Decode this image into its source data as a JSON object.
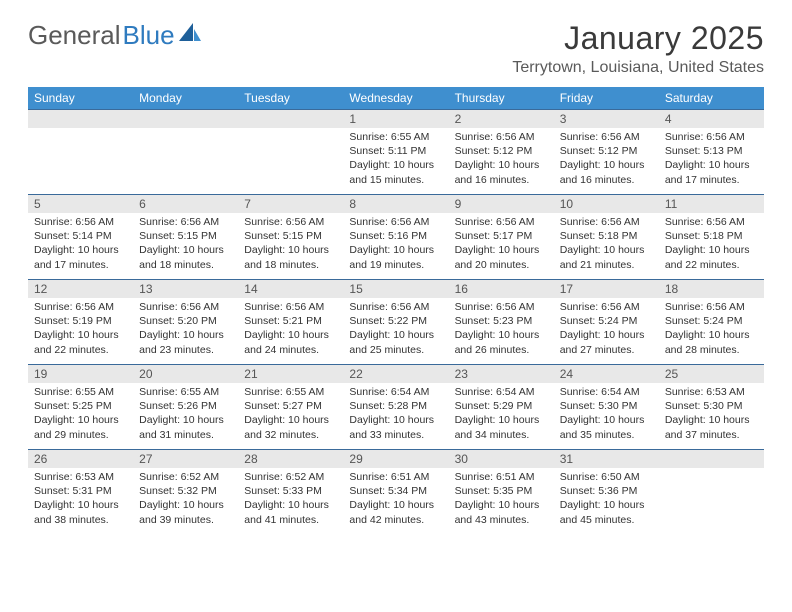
{
  "logo": {
    "text1": "General",
    "text2": "Blue"
  },
  "title": "January 2025",
  "location": "Terrytown, Louisiana, United States",
  "colors": {
    "header_bg": "#3f8fcf",
    "header_text": "#ffffff",
    "daynum_bg": "#e8e8e8",
    "week_border": "#3a6a9a",
    "logo_gray": "#5a5a5a",
    "logo_blue": "#2f7bbf"
  },
  "weekdays": [
    "Sunday",
    "Monday",
    "Tuesday",
    "Wednesday",
    "Thursday",
    "Friday",
    "Saturday"
  ],
  "weeks": [
    [
      {
        "n": "",
        "l1": "",
        "l2": "",
        "l3": "",
        "l4": ""
      },
      {
        "n": "",
        "l1": "",
        "l2": "",
        "l3": "",
        "l4": ""
      },
      {
        "n": "",
        "l1": "",
        "l2": "",
        "l3": "",
        "l4": ""
      },
      {
        "n": "1",
        "l1": "Sunrise: 6:55 AM",
        "l2": "Sunset: 5:11 PM",
        "l3": "Daylight: 10 hours",
        "l4": "and 15 minutes."
      },
      {
        "n": "2",
        "l1": "Sunrise: 6:56 AM",
        "l2": "Sunset: 5:12 PM",
        "l3": "Daylight: 10 hours",
        "l4": "and 16 minutes."
      },
      {
        "n": "3",
        "l1": "Sunrise: 6:56 AM",
        "l2": "Sunset: 5:12 PM",
        "l3": "Daylight: 10 hours",
        "l4": "and 16 minutes."
      },
      {
        "n": "4",
        "l1": "Sunrise: 6:56 AM",
        "l2": "Sunset: 5:13 PM",
        "l3": "Daylight: 10 hours",
        "l4": "and 17 minutes."
      }
    ],
    [
      {
        "n": "5",
        "l1": "Sunrise: 6:56 AM",
        "l2": "Sunset: 5:14 PM",
        "l3": "Daylight: 10 hours",
        "l4": "and 17 minutes."
      },
      {
        "n": "6",
        "l1": "Sunrise: 6:56 AM",
        "l2": "Sunset: 5:15 PM",
        "l3": "Daylight: 10 hours",
        "l4": "and 18 minutes."
      },
      {
        "n": "7",
        "l1": "Sunrise: 6:56 AM",
        "l2": "Sunset: 5:15 PM",
        "l3": "Daylight: 10 hours",
        "l4": "and 18 minutes."
      },
      {
        "n": "8",
        "l1": "Sunrise: 6:56 AM",
        "l2": "Sunset: 5:16 PM",
        "l3": "Daylight: 10 hours",
        "l4": "and 19 minutes."
      },
      {
        "n": "9",
        "l1": "Sunrise: 6:56 AM",
        "l2": "Sunset: 5:17 PM",
        "l3": "Daylight: 10 hours",
        "l4": "and 20 minutes."
      },
      {
        "n": "10",
        "l1": "Sunrise: 6:56 AM",
        "l2": "Sunset: 5:18 PM",
        "l3": "Daylight: 10 hours",
        "l4": "and 21 minutes."
      },
      {
        "n": "11",
        "l1": "Sunrise: 6:56 AM",
        "l2": "Sunset: 5:18 PM",
        "l3": "Daylight: 10 hours",
        "l4": "and 22 minutes."
      }
    ],
    [
      {
        "n": "12",
        "l1": "Sunrise: 6:56 AM",
        "l2": "Sunset: 5:19 PM",
        "l3": "Daylight: 10 hours",
        "l4": "and 22 minutes."
      },
      {
        "n": "13",
        "l1": "Sunrise: 6:56 AM",
        "l2": "Sunset: 5:20 PM",
        "l3": "Daylight: 10 hours",
        "l4": "and 23 minutes."
      },
      {
        "n": "14",
        "l1": "Sunrise: 6:56 AM",
        "l2": "Sunset: 5:21 PM",
        "l3": "Daylight: 10 hours",
        "l4": "and 24 minutes."
      },
      {
        "n": "15",
        "l1": "Sunrise: 6:56 AM",
        "l2": "Sunset: 5:22 PM",
        "l3": "Daylight: 10 hours",
        "l4": "and 25 minutes."
      },
      {
        "n": "16",
        "l1": "Sunrise: 6:56 AM",
        "l2": "Sunset: 5:23 PM",
        "l3": "Daylight: 10 hours",
        "l4": "and 26 minutes."
      },
      {
        "n": "17",
        "l1": "Sunrise: 6:56 AM",
        "l2": "Sunset: 5:24 PM",
        "l3": "Daylight: 10 hours",
        "l4": "and 27 minutes."
      },
      {
        "n": "18",
        "l1": "Sunrise: 6:56 AM",
        "l2": "Sunset: 5:24 PM",
        "l3": "Daylight: 10 hours",
        "l4": "and 28 minutes."
      }
    ],
    [
      {
        "n": "19",
        "l1": "Sunrise: 6:55 AM",
        "l2": "Sunset: 5:25 PM",
        "l3": "Daylight: 10 hours",
        "l4": "and 29 minutes."
      },
      {
        "n": "20",
        "l1": "Sunrise: 6:55 AM",
        "l2": "Sunset: 5:26 PM",
        "l3": "Daylight: 10 hours",
        "l4": "and 31 minutes."
      },
      {
        "n": "21",
        "l1": "Sunrise: 6:55 AM",
        "l2": "Sunset: 5:27 PM",
        "l3": "Daylight: 10 hours",
        "l4": "and 32 minutes."
      },
      {
        "n": "22",
        "l1": "Sunrise: 6:54 AM",
        "l2": "Sunset: 5:28 PM",
        "l3": "Daylight: 10 hours",
        "l4": "and 33 minutes."
      },
      {
        "n": "23",
        "l1": "Sunrise: 6:54 AM",
        "l2": "Sunset: 5:29 PM",
        "l3": "Daylight: 10 hours",
        "l4": "and 34 minutes."
      },
      {
        "n": "24",
        "l1": "Sunrise: 6:54 AM",
        "l2": "Sunset: 5:30 PM",
        "l3": "Daylight: 10 hours",
        "l4": "and 35 minutes."
      },
      {
        "n": "25",
        "l1": "Sunrise: 6:53 AM",
        "l2": "Sunset: 5:30 PM",
        "l3": "Daylight: 10 hours",
        "l4": "and 37 minutes."
      }
    ],
    [
      {
        "n": "26",
        "l1": "Sunrise: 6:53 AM",
        "l2": "Sunset: 5:31 PM",
        "l3": "Daylight: 10 hours",
        "l4": "and 38 minutes."
      },
      {
        "n": "27",
        "l1": "Sunrise: 6:52 AM",
        "l2": "Sunset: 5:32 PM",
        "l3": "Daylight: 10 hours",
        "l4": "and 39 minutes."
      },
      {
        "n": "28",
        "l1": "Sunrise: 6:52 AM",
        "l2": "Sunset: 5:33 PM",
        "l3": "Daylight: 10 hours",
        "l4": "and 41 minutes."
      },
      {
        "n": "29",
        "l1": "Sunrise: 6:51 AM",
        "l2": "Sunset: 5:34 PM",
        "l3": "Daylight: 10 hours",
        "l4": "and 42 minutes."
      },
      {
        "n": "30",
        "l1": "Sunrise: 6:51 AM",
        "l2": "Sunset: 5:35 PM",
        "l3": "Daylight: 10 hours",
        "l4": "and 43 minutes."
      },
      {
        "n": "31",
        "l1": "Sunrise: 6:50 AM",
        "l2": "Sunset: 5:36 PM",
        "l3": "Daylight: 10 hours",
        "l4": "and 45 minutes."
      },
      {
        "n": "",
        "l1": "",
        "l2": "",
        "l3": "",
        "l4": ""
      }
    ]
  ]
}
